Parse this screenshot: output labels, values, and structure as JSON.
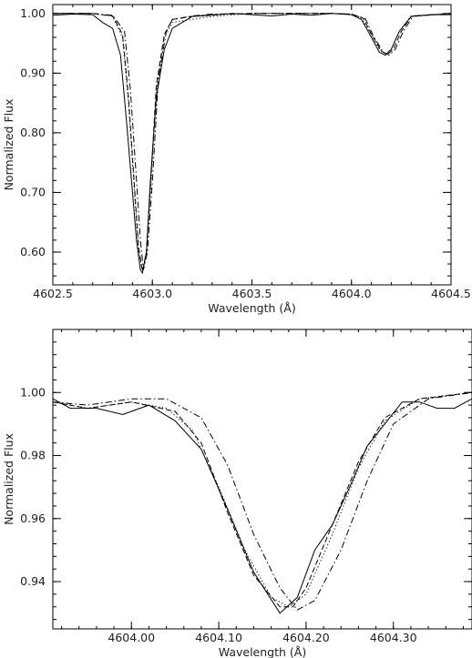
{
  "chart_data": [
    {
      "type": "line",
      "xlabel": "Wavelength (Å)",
      "ylabel": "Normalized Flux",
      "xlim": [
        4602.5,
        4604.5
      ],
      "ylim": [
        0.545,
        1.015
      ],
      "xticks": [
        4602.5,
        4603.0,
        4603.5,
        4604.0,
        4604.5
      ],
      "xtick_labels": [
        "4602.5",
        "4603.0",
        "4603.5",
        "4604.0",
        "4604.5"
      ],
      "yticks": [
        0.6,
        0.7,
        0.8,
        0.9,
        1.0
      ],
      "ytick_labels": [
        "0.60",
        "0.70",
        "0.80",
        "0.90",
        "1.00"
      ],
      "grid": false,
      "series": [
        {
          "style": "solid",
          "x": [
            4602.5,
            4602.6,
            4602.7,
            4602.75,
            4602.8,
            4602.84,
            4602.87,
            4602.9,
            4602.92,
            4602.94,
            4602.95,
            4602.97,
            4602.99,
            4603.02,
            4603.06,
            4603.1,
            4603.15,
            4603.2,
            4603.3,
            4603.4,
            4603.5,
            4603.6,
            4603.7,
            4603.8,
            4603.9,
            4604.0,
            4604.05,
            4604.1,
            4604.14,
            4604.17,
            4604.2,
            4604.24,
            4604.3,
            4604.4,
            4604.5
          ],
          "y": [
            0.997,
            0.999,
            0.998,
            0.985,
            0.975,
            0.93,
            0.82,
            0.7,
            0.62,
            0.57,
            0.565,
            0.6,
            0.72,
            0.86,
            0.94,
            0.975,
            0.985,
            0.995,
            0.997,
            1.0,
            0.998,
            0.996,
            0.999,
            0.997,
            1.0,
            0.998,
            0.99,
            0.96,
            0.935,
            0.93,
            0.94,
            0.97,
            0.995,
            0.998,
            0.998
          ]
        },
        {
          "style": "dotted",
          "x": [
            4602.5,
            4602.7,
            4602.8,
            4602.85,
            4602.88,
            4602.91,
            4602.93,
            4602.95,
            4602.97,
            4602.99,
            4603.02,
            4603.06,
            4603.1,
            4603.2,
            4603.3,
            4603.5,
            4603.7,
            4603.9,
            4604.0,
            4604.05,
            4604.1,
            4604.14,
            4604.17,
            4604.2,
            4604.24,
            4604.3,
            4604.5
          ],
          "y": [
            1.0,
            1.0,
            0.995,
            0.96,
            0.85,
            0.7,
            0.6,
            0.57,
            0.6,
            0.7,
            0.87,
            0.96,
            0.985,
            0.99,
            0.995,
            1.0,
            1.0,
            1.0,
            0.998,
            0.993,
            0.965,
            0.94,
            0.932,
            0.94,
            0.97,
            0.996,
            1.0
          ]
        },
        {
          "style": "dashed",
          "x": [
            4602.5,
            4602.7,
            4602.8,
            4602.85,
            4602.88,
            4602.91,
            4602.93,
            4602.95,
            4602.97,
            4602.99,
            4603.02,
            4603.06,
            4603.1,
            4603.2,
            4603.3,
            4603.5,
            4603.7,
            4603.9,
            4604.0,
            4604.06,
            4604.1,
            4604.15,
            4604.18,
            4604.21,
            4604.25,
            4604.3,
            4604.5
          ],
          "y": [
            1.0,
            1.0,
            0.996,
            0.965,
            0.86,
            0.71,
            0.61,
            0.568,
            0.6,
            0.71,
            0.88,
            0.965,
            0.99,
            0.995,
            0.998,
            1.0,
            1.0,
            1.0,
            0.999,
            0.992,
            0.965,
            0.937,
            0.931,
            0.94,
            0.97,
            0.995,
            1.0
          ]
        },
        {
          "style": "dashdot",
          "x": [
            4602.5,
            4602.7,
            4602.8,
            4602.86,
            4602.89,
            4602.92,
            4602.94,
            4602.955,
            4602.975,
            4603.0,
            4603.03,
            4603.07,
            4603.1,
            4603.2,
            4603.3,
            4603.5,
            4603.7,
            4603.9,
            4604.0,
            4604.07,
            4604.11,
            4604.16,
            4604.19,
            4604.22,
            4604.26,
            4604.31,
            4604.5
          ],
          "y": [
            1.0,
            1.0,
            0.997,
            0.97,
            0.87,
            0.72,
            0.62,
            0.57,
            0.6,
            0.72,
            0.89,
            0.97,
            0.99,
            0.996,
            0.999,
            1.0,
            1.0,
            1.0,
            0.999,
            0.991,
            0.962,
            0.935,
            0.93,
            0.94,
            0.97,
            0.996,
            1.0
          ]
        }
      ]
    },
    {
      "type": "line",
      "xlabel": "Wavelength (Å)",
      "ylabel": "Normalized Flux",
      "xlim": [
        4603.91,
        4604.39
      ],
      "ylim": [
        0.925,
        1.02
      ],
      "xticks": [
        4604.0,
        4604.1,
        4604.2,
        4604.3
      ],
      "xtick_labels": [
        "4604.00",
        "4604.10",
        "4604.20",
        "4604.30"
      ],
      "yticks": [
        0.94,
        0.96,
        0.98,
        1.0
      ],
      "ytick_labels": [
        "0.94",
        "0.96",
        "0.98",
        "1.00"
      ],
      "grid": false,
      "series": [
        {
          "style": "solid",
          "x": [
            4603.91,
            4603.93,
            4603.96,
            4603.99,
            4604.02,
            4604.05,
            4604.08,
            4604.11,
            4604.14,
            4604.17,
            4604.19,
            4604.21,
            4604.23,
            4604.25,
            4604.27,
            4604.29,
            4604.31,
            4604.33,
            4604.35,
            4604.37,
            4604.39
          ],
          "y": [
            0.998,
            0.995,
            0.995,
            0.993,
            0.996,
            0.991,
            0.982,
            0.963,
            0.943,
            0.93,
            0.935,
            0.95,
            0.958,
            0.97,
            0.983,
            0.99,
            0.997,
            0.997,
            0.995,
            0.995,
            0.998
          ]
        },
        {
          "style": "dotted",
          "x": [
            4603.91,
            4603.95,
            4604.0,
            4604.04,
            4604.07,
            4604.1,
            4604.13,
            4604.16,
            4604.18,
            4604.2,
            4604.23,
            4604.26,
            4604.29,
            4604.33,
            4604.39
          ],
          "y": [
            0.997,
            0.995,
            0.997,
            0.995,
            0.988,
            0.97,
            0.95,
            0.935,
            0.932,
            0.936,
            0.955,
            0.976,
            0.991,
            0.998,
            1.0
          ]
        },
        {
          "style": "dashed",
          "x": [
            4603.91,
            4603.95,
            4604.0,
            4604.05,
            4604.08,
            4604.11,
            4604.14,
            4604.17,
            4604.185,
            4604.2,
            4604.23,
            4604.26,
            4604.29,
            4604.33,
            4604.39
          ],
          "y": [
            0.997,
            0.995,
            0.997,
            0.994,
            0.984,
            0.962,
            0.942,
            0.932,
            0.932,
            0.938,
            0.958,
            0.978,
            0.992,
            0.998,
            1.0
          ]
        },
        {
          "style": "dashdot",
          "x": [
            4603.91,
            4603.95,
            4604.0,
            4604.04,
            4604.08,
            4604.11,
            4604.14,
            4604.17,
            4604.19,
            4604.21,
            4604.24,
            4604.27,
            4604.3,
            4604.34,
            4604.39
          ],
          "y": [
            0.997,
            0.996,
            0.998,
            0.998,
            0.992,
            0.977,
            0.955,
            0.938,
            0.931,
            0.934,
            0.95,
            0.972,
            0.99,
            0.998,
            1.0
          ]
        }
      ]
    }
  ]
}
